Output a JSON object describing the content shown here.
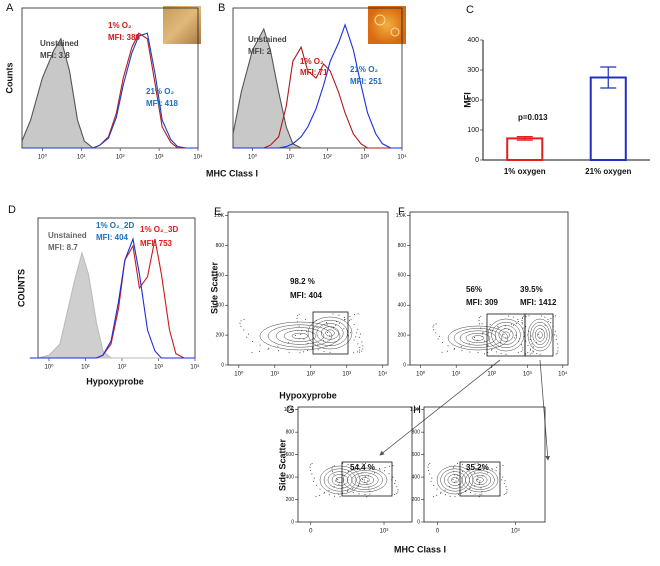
{
  "chart_data": [
    {
      "panel": "A",
      "type": "line",
      "ylabel": "Counts",
      "xlabel": "MHC Class I",
      "xlog": true,
      "xlim": [
        0.3,
        10000
      ],
      "ylim": [
        0,
        100
      ],
      "xticks": [
        {
          "value": 1,
          "label": "10⁰"
        },
        {
          "value": 10,
          "label": "10¹"
        },
        {
          "value": 100,
          "label": "10²"
        },
        {
          "value": 1000,
          "label": "10³"
        },
        {
          "value": 10000,
          "label": "10⁴"
        }
      ],
      "x": [
        0.3,
        0.5,
        1,
        2,
        3,
        5,
        8,
        12,
        20,
        30,
        50,
        80,
        120,
        200,
        300,
        500,
        800,
        1200,
        2000,
        3000,
        5000,
        10000
      ],
      "series": [
        {
          "name": "Unstained",
          "color": "#555555",
          "fill": "#c8c8c8",
          "values": [
            5,
            20,
            50,
            70,
            78,
            55,
            20,
            5,
            0,
            0,
            0,
            0,
            0,
            0,
            0,
            0,
            0,
            0,
            0,
            0,
            0,
            0
          ]
        },
        {
          "name": "1% O₂",
          "color": "#c01818",
          "values": [
            0,
            0,
            0,
            0,
            0,
            0,
            0,
            0,
            0,
            2,
            8,
            25,
            50,
            72,
            82,
            78,
            45,
            15,
            4,
            0,
            0,
            0
          ]
        },
        {
          "name": "21% O₂",
          "color": "#1a3ec0",
          "values": [
            0,
            0,
            0,
            0,
            0,
            0,
            0,
            0,
            0,
            2,
            7,
            22,
            45,
            68,
            80,
            82,
            52,
            20,
            6,
            1,
            0,
            0
          ]
        }
      ],
      "annotations": [
        {
          "text": "Unstained",
          "color": "#444444"
        },
        {
          "text": "MFI: 3.8",
          "color": "#444444"
        },
        {
          "text": "1% O₂",
          "color": "#d01818"
        },
        {
          "text": "MFI: 389",
          "color": "#d01818"
        },
        {
          "text": "21% O₂",
          "color": "#1a6ec0"
        },
        {
          "text": "MFI: 418",
          "color": "#1a6ec0"
        }
      ]
    },
    {
      "panel": "B",
      "type": "line",
      "xlog": true,
      "xlim": [
        0.3,
        10000
      ],
      "ylim": [
        0,
        100
      ],
      "xticks": [
        {
          "value": 1,
          "label": "10⁰"
        },
        {
          "value": 10,
          "label": "10¹"
        },
        {
          "value": 100,
          "label": "10²"
        },
        {
          "value": 1000,
          "label": "10³"
        },
        {
          "value": 10000,
          "label": "10⁴"
        }
      ],
      "x": [
        0.3,
        0.5,
        1,
        2,
        3,
        5,
        8,
        12,
        20,
        30,
        50,
        80,
        120,
        200,
        300,
        500,
        800,
        1200,
        2000,
        3000,
        5000,
        10000
      ],
      "series": [
        {
          "name": "Unstained",
          "color": "#555555",
          "fill": "#c8c8c8",
          "values": [
            10,
            40,
            70,
            85,
            70,
            40,
            15,
            3,
            0,
            0,
            0,
            0,
            0,
            0,
            0,
            0,
            0,
            0,
            0,
            0,
            0,
            0
          ]
        },
        {
          "name": "1% O₂",
          "color": "#b01818",
          "values": [
            0,
            0,
            0,
            0,
            2,
            8,
            30,
            62,
            72,
            55,
            50,
            60,
            55,
            40,
            25,
            10,
            3,
            0,
            0,
            0,
            0,
            0
          ]
        },
        {
          "name": "21% O₂",
          "color": "#1a2ee0",
          "values": [
            0,
            0,
            0,
            0,
            0,
            0,
            1,
            3,
            8,
            15,
            28,
            45,
            62,
            75,
            88,
            70,
            45,
            25,
            10,
            3,
            0,
            0
          ]
        }
      ],
      "annotations": [
        {
          "text": "Unstained",
          "color": "#444444"
        },
        {
          "text": "MFI: 2",
          "color": "#444444"
        },
        {
          "text": "1% O₂",
          "color": "#d01818"
        },
        {
          "text": "MFI: 71",
          "color": "#d01818"
        },
        {
          "text": "21% O₂",
          "color": "#1a6ec0"
        },
        {
          "text": "MFI: 251",
          "color": "#1a6ec0"
        }
      ]
    },
    {
      "panel": "C",
      "type": "bar",
      "ylabel": "MFI",
      "categories": [
        "1% oxygen",
        "21% oxygen"
      ],
      "values": [
        72,
        275
      ],
      "errors": [
        6,
        35
      ],
      "colors": [
        "#e02020",
        "#2030c0"
      ],
      "ylim": [
        0,
        400
      ],
      "yticks": [
        0,
        100,
        200,
        300,
        400
      ],
      "annotations": [
        {
          "text": "p=0.013",
          "color": "#111111"
        }
      ]
    },
    {
      "panel": "D",
      "type": "line",
      "ylabel": "COUNTS",
      "xlabel": "Hypoxyprobe",
      "xlog": true,
      "xlim": [
        0.5,
        10000
      ],
      "ylim": [
        0,
        100
      ],
      "xticks": [
        {
          "value": 1,
          "label": "10⁰"
        },
        {
          "value": 10,
          "label": "10¹"
        },
        {
          "value": 100,
          "label": "10²"
        },
        {
          "value": 1000,
          "label": "10³"
        },
        {
          "value": 10000,
          "label": "10⁴"
        }
      ],
      "x": [
        0.3,
        0.5,
        1,
        2,
        3,
        5,
        8,
        12,
        20,
        30,
        50,
        80,
        120,
        200,
        300,
        500,
        800,
        1200,
        2000,
        3000,
        5000,
        10000
      ],
      "series": [
        {
          "name": "Unstained",
          "color": "#bbbbbb",
          "fill": "#cfcfcf",
          "values": [
            0,
            0,
            2,
            10,
            30,
            55,
            75,
            60,
            25,
            5,
            0,
            0,
            0,
            0,
            0,
            0,
            0,
            0,
            0,
            0,
            0,
            0
          ]
        },
        {
          "name": "1% O₂_3D",
          "color": "#d01818",
          "values": [
            0,
            0,
            0,
            0,
            0,
            0,
            0,
            0,
            0,
            2,
            10,
            35,
            70,
            80,
            50,
            58,
            85,
            60,
            20,
            3,
            0,
            0
          ]
        },
        {
          "name": "1% O₂_2D",
          "color": "#1a2ee0",
          "values": [
            0,
            0,
            0,
            0,
            0,
            0,
            0,
            0,
            0,
            2,
            12,
            40,
            70,
            85,
            60,
            20,
            5,
            0,
            0,
            0,
            0,
            0
          ]
        }
      ],
      "annotations": [
        {
          "text": "Unstained",
          "color": "#666666"
        },
        {
          "text": "MFI: 8.7",
          "color": "#666666"
        },
        {
          "text": "1% O₂_2D",
          "color": "#1a6ec0"
        },
        {
          "text": "MFI: 404",
          "color": "#1a6ec0"
        },
        {
          "text": "1% O₂_3D",
          "color": "#e01818"
        },
        {
          "text": "MFI: 753",
          "color": "#e01818"
        }
      ]
    },
    {
      "panel": "E",
      "type": "scatter",
      "ylabel": "Side Scatter",
      "xlabel": "Hypoxyprobe",
      "xlog": true,
      "xlim": [
        0.5,
        14000
      ],
      "ylim": [
        0,
        1024
      ],
      "xticks": [
        {
          "value": 1,
          "label": "10⁰"
        },
        {
          "value": 10,
          "label": "10¹"
        },
        {
          "value": 100,
          "label": "10²"
        },
        {
          "value": 1000,
          "label": "10³"
        },
        {
          "value": 10000,
          "label": "10⁴"
        }
      ],
      "yticks": [
        0,
        200,
        400,
        600,
        800,
        {
          "value": 1000,
          "label": "1.0K"
        }
      ],
      "annotations": [
        {
          "text": "98.2 %",
          "color": "#111111"
        },
        {
          "text": "MFI: 404",
          "color": "#111111"
        }
      ]
    },
    {
      "panel": "F",
      "type": "scatter",
      "xlog": true,
      "xlim": [
        0.5,
        14000
      ],
      "ylim": [
        0,
        1024
      ],
      "xticks": [
        {
          "value": 1,
          "label": "10⁰"
        },
        {
          "value": 10,
          "label": "10¹"
        },
        {
          "value": 100,
          "label": "10²"
        },
        {
          "value": 1000,
          "label": "10³"
        },
        {
          "value": 10000,
          "label": "10⁴"
        }
      ],
      "yticks": [
        0,
        200,
        400,
        600,
        800,
        {
          "value": 1000,
          "label": "1.0K"
        }
      ],
      "annotations": [
        {
          "text": "56%",
          "color": "#111111"
        },
        {
          "text": "MFI: 309",
          "color": "#111111"
        },
        {
          "text": "39.5%",
          "color": "#111111"
        },
        {
          "text": "MFI: 1412",
          "color": "#111111"
        }
      ]
    },
    {
      "panel": "G",
      "type": "scatter",
      "ylabel": "Side Scatter",
      "xlabel": "MHC Class I",
      "xlog": true,
      "xlim": [
        0.3,
        14000
      ],
      "ylim": [
        0,
        1024
      ],
      "xticks": [
        {
          "value": 1,
          "label": "0"
        },
        {
          "value": 1000,
          "label": "10³"
        }
      ],
      "yticks": [
        0,
        200,
        400,
        600,
        800,
        {
          "value": 1000,
          "label": "1.0K"
        }
      ],
      "annotations": [
        {
          "text": "54.4 %",
          "color": "#111111"
        }
      ]
    },
    {
      "panel": "H",
      "type": "scatter",
      "xlog": true,
      "xlim": [
        0.3,
        14000
      ],
      "ylim": [
        0,
        1024
      ],
      "xticks": [
        {
          "value": 1,
          "label": "0"
        },
        {
          "value": 1000,
          "label": "10³"
        }
      ],
      "yticks": [
        0,
        200,
        400,
        600,
        800,
        {
          "value": 1000,
          "label": "1.0K"
        }
      ],
      "annotations": [
        {
          "text": "35.2%",
          "color": "#111111"
        }
      ]
    }
  ]
}
